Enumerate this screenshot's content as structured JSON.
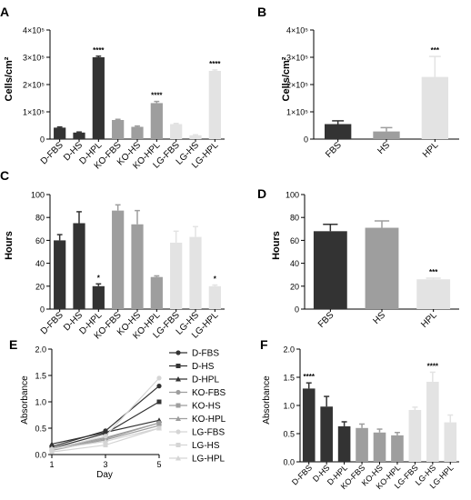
{
  "chart_data": [
    {
      "panel": "A",
      "type": "bar",
      "ylabel": "Cells/cm²",
      "ylim": [
        0,
        400000
      ],
      "yticks": [
        "0",
        "1×10⁵",
        "2×10⁵",
        "3×10⁵",
        "4×10⁵"
      ],
      "categories": [
        "D-FBS",
        "D-HS",
        "D-HPL",
        "KO-FBS",
        "KO-HS",
        "KO-HPL",
        "LG-FBS",
        "LG-HS",
        "LG-HPL"
      ],
      "values": [
        42000,
        24000,
        300000,
        70000,
        45000,
        132000,
        55000,
        14000,
        250000
      ],
      "errors": [
        2500,
        2000,
        4000,
        2500,
        3000,
        6000,
        2500,
        2000,
        3500
      ],
      "significance": [
        "",
        "",
        "****",
        "",
        "",
        "****",
        "",
        "",
        "****"
      ],
      "colors": [
        "#333333",
        "#333333",
        "#333333",
        "#9e9e9e",
        "#9e9e9e",
        "#9e9e9e",
        "#e3e3e3",
        "#e3e3e3",
        "#e3e3e3"
      ]
    },
    {
      "panel": "B",
      "type": "bar",
      "ylabel": "Cells/cm²",
      "ylim": [
        0,
        400000
      ],
      "yticks": [
        "0",
        "1×10⁵",
        "2×10⁵",
        "3×10⁵",
        "4×10⁵"
      ],
      "categories": [
        "FBS",
        "HS",
        "HPL"
      ],
      "values": [
        55000,
        28000,
        228000
      ],
      "errors": [
        12000,
        14000,
        75000
      ],
      "significance": [
        "",
        "",
        "***"
      ],
      "colors": [
        "#333333",
        "#9e9e9e",
        "#e3e3e3"
      ]
    },
    {
      "panel": "C",
      "type": "bar",
      "ylabel": "Hours",
      "ylim": [
        0,
        100
      ],
      "yticks": [
        "0",
        "20",
        "40",
        "60",
        "80",
        "100"
      ],
      "categories": [
        "D-FBS",
        "D-HS",
        "D-HPL",
        "KO-FBS",
        "KO-HS",
        "KO-HPL",
        "LG-FBS",
        "LG-HS",
        "LG-HPL"
      ],
      "values": [
        60,
        75,
        20,
        86,
        74,
        28,
        58,
        63,
        20
      ],
      "errors": [
        5,
        10,
        2,
        5,
        12,
        1,
        10,
        9,
        1
      ],
      "significance": [
        "",
        "",
        "*",
        "",
        "",
        "",
        "",
        "",
        "*"
      ],
      "colors": [
        "#333333",
        "#333333",
        "#333333",
        "#9e9e9e",
        "#9e9e9e",
        "#9e9e9e",
        "#e3e3e3",
        "#e3e3e3",
        "#e3e3e3"
      ]
    },
    {
      "panel": "D",
      "type": "bar",
      "ylabel": "Hours",
      "ylim": [
        0,
        100
      ],
      "yticks": [
        "0",
        "20",
        "40",
        "60",
        "80",
        "100"
      ],
      "categories": [
        "FBS",
        "HS",
        "HPL"
      ],
      "values": [
        68,
        71,
        26
      ],
      "errors": [
        6,
        6,
        1
      ],
      "significance": [
        "",
        "",
        "***"
      ],
      "colors": [
        "#333333",
        "#9e9e9e",
        "#e3e3e3"
      ]
    },
    {
      "panel": "E",
      "type": "line",
      "xlabel": "Day",
      "ylabel": "Absorbance",
      "x": [
        1,
        3,
        5
      ],
      "xticks": [
        "1",
        "3",
        "5"
      ],
      "ylim": [
        0,
        2.0
      ],
      "yticks": [
        "0.0",
        "0.5",
        "1.0",
        "1.5",
        "2.0"
      ],
      "legend_position": "right",
      "series": [
        {
          "name": "D-FBS",
          "values": [
            0.15,
            0.45,
            1.3
          ],
          "color": "#333333",
          "marker": "circle"
        },
        {
          "name": "D-HS",
          "values": [
            0.12,
            0.4,
            1.0
          ],
          "color": "#333333",
          "marker": "square"
        },
        {
          "name": "D-HPL",
          "values": [
            0.2,
            0.42,
            0.65
          ],
          "color": "#333333",
          "marker": "triangle"
        },
        {
          "name": "KO-FBS",
          "values": [
            0.1,
            0.3,
            0.6
          ],
          "color": "#9e9e9e",
          "marker": "circle"
        },
        {
          "name": "KO-HS",
          "values": [
            0.08,
            0.28,
            0.55
          ],
          "color": "#9e9e9e",
          "marker": "square"
        },
        {
          "name": "KO-HPL",
          "values": [
            0.12,
            0.32,
            0.6
          ],
          "color": "#9e9e9e",
          "marker": "triangle"
        },
        {
          "name": "LG-FBS",
          "values": [
            0.1,
            0.35,
            1.45
          ],
          "color": "#d5d5d5",
          "marker": "circle"
        },
        {
          "name": "LG-HS",
          "values": [
            0.05,
            0.18,
            0.5
          ],
          "color": "#d5d5d5",
          "marker": "square"
        },
        {
          "name": "LG-HPL",
          "values": [
            0.1,
            0.25,
            0.5
          ],
          "color": "#d5d5d5",
          "marker": "triangle"
        }
      ]
    },
    {
      "panel": "F",
      "type": "bar",
      "ylabel": "Absorbance",
      "ylim": [
        0,
        2.0
      ],
      "yticks": [
        "0.0",
        "0.5",
        "1.0",
        "1.5",
        "2.0"
      ],
      "categories": [
        "D-FBS",
        "D-HS",
        "D-HPL",
        "KO-FBS",
        "KO-HS",
        "KO-HPL",
        "LG-FBS",
        "LG-HS",
        "LG-HPL"
      ],
      "values": [
        1.3,
        0.98,
        0.63,
        0.6,
        0.52,
        0.47,
        0.92,
        1.42,
        0.7
      ],
      "errors": [
        0.1,
        0.18,
        0.08,
        0.07,
        0.06,
        0.05,
        0.05,
        0.17,
        0.13
      ],
      "significance": [
        "****",
        "",
        "",
        "",
        "",
        "",
        "",
        "****",
        ""
      ],
      "colors": [
        "#333333",
        "#333333",
        "#333333",
        "#9e9e9e",
        "#9e9e9e",
        "#9e9e9e",
        "#e3e3e3",
        "#e3e3e3",
        "#e3e3e3"
      ]
    }
  ]
}
